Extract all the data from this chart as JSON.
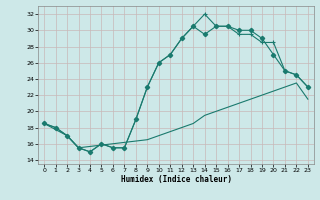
{
  "xlabel": "Humidex (Indice chaleur)",
  "bg_color": "#cde8e8",
  "grid_color": "#c8b8b8",
  "line_color": "#1a7a6e",
  "xlim": [
    -0.5,
    23.5
  ],
  "ylim": [
    13.5,
    33.0
  ],
  "xticks": [
    0,
    1,
    2,
    3,
    4,
    5,
    6,
    7,
    8,
    9,
    10,
    11,
    12,
    13,
    14,
    15,
    16,
    17,
    18,
    19,
    20,
    21,
    22,
    23
  ],
  "yticks": [
    14,
    16,
    18,
    20,
    22,
    24,
    26,
    28,
    30,
    32
  ],
  "line_top_x": [
    0,
    1,
    2,
    3,
    4,
    5,
    6,
    7,
    8,
    9,
    10,
    11,
    12,
    13,
    14,
    15,
    16,
    17,
    18,
    19,
    20,
    21,
    22,
    23
  ],
  "line_top_y": [
    18.5,
    18.0,
    17.0,
    15.5,
    15.0,
    16.0,
    15.5,
    15.5,
    19.0,
    23.0,
    26.0,
    27.0,
    29.0,
    30.5,
    32.0,
    30.5,
    30.5,
    29.5,
    29.5,
    28.5,
    28.5,
    25.0,
    24.5,
    23.0
  ],
  "line_mid_x": [
    0,
    1,
    2,
    3,
    4,
    5,
    6,
    7,
    8,
    9,
    10,
    11,
    12,
    13,
    14,
    15,
    16,
    17,
    18,
    19,
    20,
    21,
    22,
    23
  ],
  "line_mid_y": [
    18.5,
    18.0,
    17.0,
    15.5,
    15.0,
    16.0,
    15.5,
    15.5,
    19.0,
    23.0,
    26.0,
    27.0,
    29.0,
    30.5,
    29.5,
    30.5,
    30.5,
    30.0,
    30.0,
    29.0,
    27.0,
    25.0,
    24.5,
    23.0
  ],
  "line_bot_x": [
    0,
    2,
    3,
    9,
    10,
    11,
    12,
    13,
    14,
    15,
    16,
    17,
    18,
    19,
    20,
    21,
    22,
    23
  ],
  "line_bot_y": [
    18.5,
    17.0,
    15.5,
    16.5,
    17.0,
    17.5,
    18.0,
    18.5,
    19.5,
    20.0,
    20.5,
    21.0,
    21.5,
    22.0,
    22.5,
    23.0,
    23.5,
    21.5
  ]
}
